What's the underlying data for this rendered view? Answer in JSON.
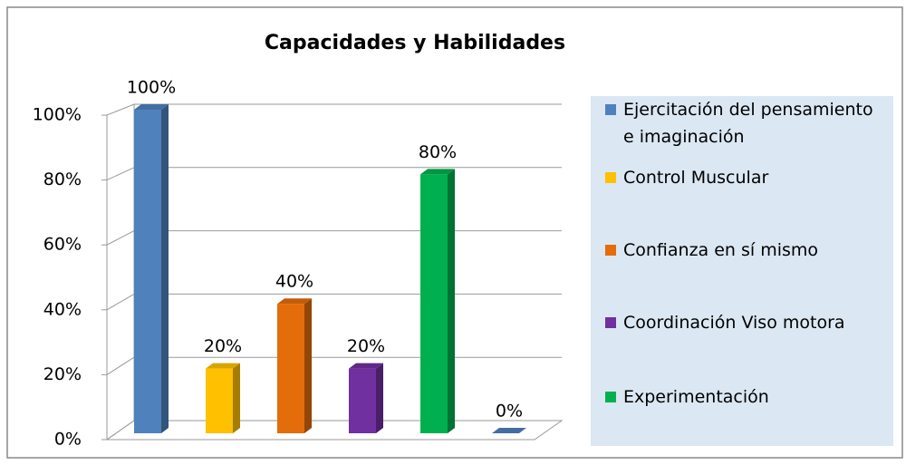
{
  "chart_data": {
    "type": "bar3d",
    "title": "Capacidades y Habilidades",
    "categories": [
      "Ejercitación del pensamiento e imaginación",
      "Control Muscular",
      "Confianza en sí mismo",
      "Coordinación Viso motora",
      "Experimentación",
      null
    ],
    "values": [
      100,
      20,
      40,
      20,
      80,
      0
    ],
    "value_labels": [
      "100%",
      "20%",
      "40%",
      "20%",
      "80%",
      "0%"
    ],
    "colors": [
      "#4f81bd",
      "#ffc000",
      "#e46c0a",
      "#7030a0",
      "#00b050",
      "#4f81bd"
    ],
    "ylim": [
      0,
      100
    ],
    "yticks": [
      {
        "value": 0,
        "label": "0%"
      },
      {
        "value": 20,
        "label": "20%"
      },
      {
        "value": 40,
        "label": "40%"
      },
      {
        "value": 60,
        "label": "60%"
      },
      {
        "value": 80,
        "label": "80%"
      },
      {
        "value": 100,
        "label": "100%"
      }
    ],
    "grid": true,
    "legend": "right"
  }
}
